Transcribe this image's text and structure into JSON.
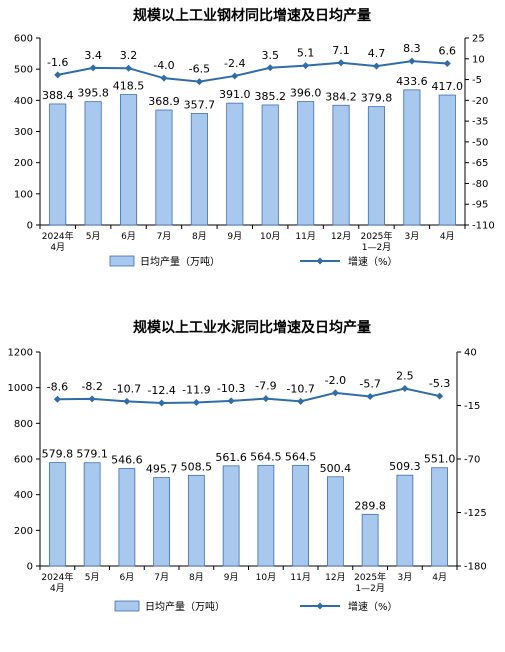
{
  "colors": {
    "bar_fill": "#a9c8ee",
    "bar_stroke": "#3f6fb0",
    "line": "#2f6da8",
    "axis": "#000000",
    "text": "#000000"
  },
  "chart_data": [
    {
      "type": "bar+line",
      "title": "规模以上工业钢材同比增速及日均产量",
      "categories": [
        [
          "2024年",
          "4月"
        ],
        [
          "5月"
        ],
        [
          "6月"
        ],
        [
          "7月"
        ],
        [
          "8月"
        ],
        [
          "9月"
        ],
        [
          "10月"
        ],
        [
          "11月"
        ],
        [
          "12月"
        ],
        [
          "2025年",
          "1—2月"
        ],
        [
          "3月"
        ],
        [
          "4月"
        ]
      ],
      "series": [
        {
          "name": "日均产量（万吨）",
          "type": "bar",
          "axis": "left",
          "values": [
            388.4,
            395.8,
            418.5,
            368.9,
            357.7,
            391.0,
            385.2,
            396.0,
            384.2,
            379.8,
            433.6,
            417.0
          ],
          "labels": [
            "388.4",
            "395.8",
            "418.5",
            "368.9",
            "357.7",
            "391.0",
            "385.2",
            "396.0",
            "384.2",
            "379.8",
            "433.6",
            "417.0"
          ]
        },
        {
          "name": "增速（%）",
          "type": "line",
          "axis": "right",
          "values": [
            -1.6,
            3.4,
            3.2,
            -4.0,
            -6.5,
            -2.4,
            3.5,
            5.1,
            7.1,
            4.7,
            8.3,
            6.6
          ],
          "labels": [
            "-1.6",
            "3.4",
            "3.2",
            "-4.0",
            "-6.5",
            "-2.4",
            "3.5",
            "5.1",
            "7.1",
            "4.7",
            "8.3",
            "6.6"
          ]
        }
      ],
      "y_left": {
        "ylim": [
          0,
          600
        ],
        "ticks": [
          "0",
          "100",
          "200",
          "300",
          "400",
          "500",
          "600"
        ]
      },
      "y_right": {
        "ylim": [
          -110,
          25
        ],
        "ticks": [
          "25",
          "10",
          "-5",
          "-20",
          "-35",
          "-50",
          "-65",
          "-80",
          "-95",
          "-110"
        ]
      },
      "legend": [
        "日均产量（万吨）",
        "增速（%）"
      ],
      "legend_position": "bottom"
    },
    {
      "type": "bar+line",
      "title": "规模以上工业水泥同比增速及日均产量",
      "categories": [
        [
          "2024年",
          "4月"
        ],
        [
          "5月"
        ],
        [
          "6月"
        ],
        [
          "7月"
        ],
        [
          "8月"
        ],
        [
          "9月"
        ],
        [
          "10月"
        ],
        [
          "11月"
        ],
        [
          "12月"
        ],
        [
          "2025年",
          "1—2月"
        ],
        [
          "3月"
        ],
        [
          "4月"
        ]
      ],
      "series": [
        {
          "name": "日均产量（万吨）",
          "type": "bar",
          "axis": "left",
          "values": [
            579.8,
            579.1,
            546.6,
            495.7,
            508.5,
            561.6,
            564.5,
            564.5,
            500.4,
            289.8,
            509.3,
            551.0
          ],
          "labels": [
            "579.8",
            "579.1",
            "546.6",
            "495.7",
            "508.5",
            "561.6",
            "564.5",
            "564.5",
            "500.4",
            "289.8",
            "509.3",
            "551.0"
          ]
        },
        {
          "name": "增速（%）",
          "type": "line",
          "axis": "right",
          "values": [
            -8.6,
            -8.2,
            -10.7,
            -12.4,
            -11.9,
            -10.3,
            -7.9,
            -10.7,
            -2.0,
            -5.7,
            2.5,
            -5.3
          ],
          "labels": [
            "-8.6",
            "-8.2",
            "-10.7",
            "-12.4",
            "-11.9",
            "-10.3",
            "-7.9",
            "-10.7",
            "-2.0",
            "-5.7",
            "2.5",
            "-5.3"
          ]
        }
      ],
      "y_left": {
        "ylim": [
          0,
          1200
        ],
        "ticks": [
          "0",
          "200",
          "400",
          "600",
          "800",
          "1000",
          "1200"
        ]
      },
      "y_right": {
        "ylim": [
          -180,
          40
        ],
        "ticks": [
          "40",
          "-15",
          "-70",
          "-125",
          "-180"
        ]
      },
      "legend": [
        "日均产量（万吨）",
        "增速（%）"
      ],
      "legend_position": "bottom"
    }
  ]
}
